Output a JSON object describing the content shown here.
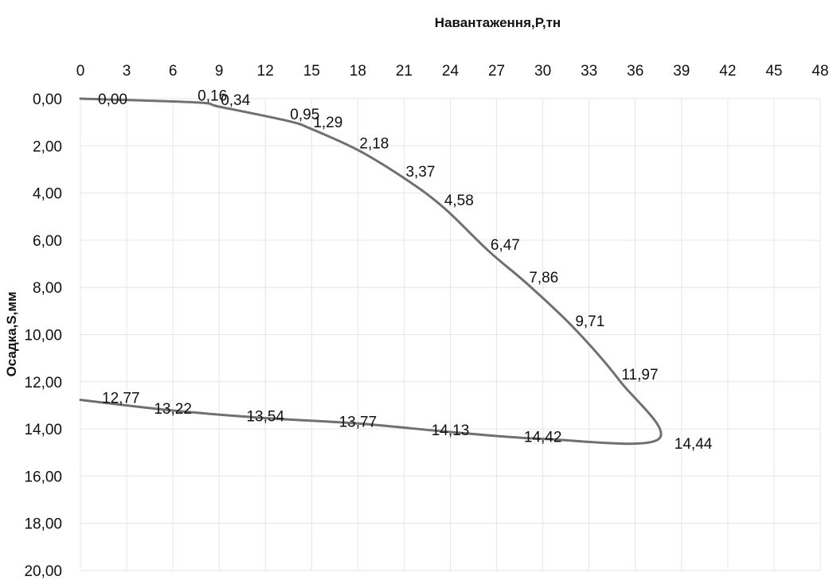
{
  "chart_data": {
    "type": "line",
    "title": "",
    "xlabel": "Навантаження,P,тн",
    "ylabel": "Осадка,S,мм",
    "xlim": [
      0,
      48
    ],
    "ylim": [
      0,
      20
    ],
    "y_inverted": true,
    "x_axis_position": "top",
    "grid": true,
    "x_ticks": [
      "0",
      "3",
      "6",
      "9",
      "12",
      "15",
      "18",
      "21",
      "24",
      "27",
      "30",
      "33",
      "36",
      "39",
      "42",
      "45",
      "48"
    ],
    "y_ticks": [
      "0,00",
      "2,00",
      "4,00",
      "6,00",
      "8,00",
      "10,00",
      "12,00",
      "14,00",
      "16,00",
      "18,00",
      "20,00"
    ],
    "series": [
      {
        "points": [
          {
            "x": 0,
            "y": 0.0,
            "label": "0,00"
          },
          {
            "x": 7.5,
            "y": 0.16,
            "label": "0,16"
          },
          {
            "x": 9,
            "y": 0.34,
            "label": "0,34"
          },
          {
            "x": 13.5,
            "y": 0.95,
            "label": "0,95"
          },
          {
            "x": 15,
            "y": 1.29,
            "label": "1,29"
          },
          {
            "x": 18,
            "y": 2.18,
            "label": "2,18"
          },
          {
            "x": 21,
            "y": 3.37,
            "label": "3,37"
          },
          {
            "x": 23.5,
            "y": 4.58,
            "label": "4,58"
          },
          {
            "x": 26.5,
            "y": 6.47,
            "label": "6,47"
          },
          {
            "x": 29,
            "y": 7.86,
            "label": "7,86"
          },
          {
            "x": 32,
            "y": 9.71,
            "label": "9,71"
          },
          {
            "x": 35,
            "y": 11.97,
            "label": "11,97"
          },
          {
            "x": 37.5,
            "y": 14.44,
            "label": "14,44"
          },
          {
            "x": 30,
            "y": 14.42,
            "label": "14,42"
          },
          {
            "x": 24,
            "y": 14.13,
            "label": "14,13"
          },
          {
            "x": 18,
            "y": 13.77,
            "label": "13,77"
          },
          {
            "x": 12,
            "y": 13.54,
            "label": "13,54"
          },
          {
            "x": 6,
            "y": 13.22,
            "label": "13,22"
          },
          {
            "x": 0,
            "y": 12.77,
            "label": "12,77"
          }
        ]
      }
    ]
  }
}
